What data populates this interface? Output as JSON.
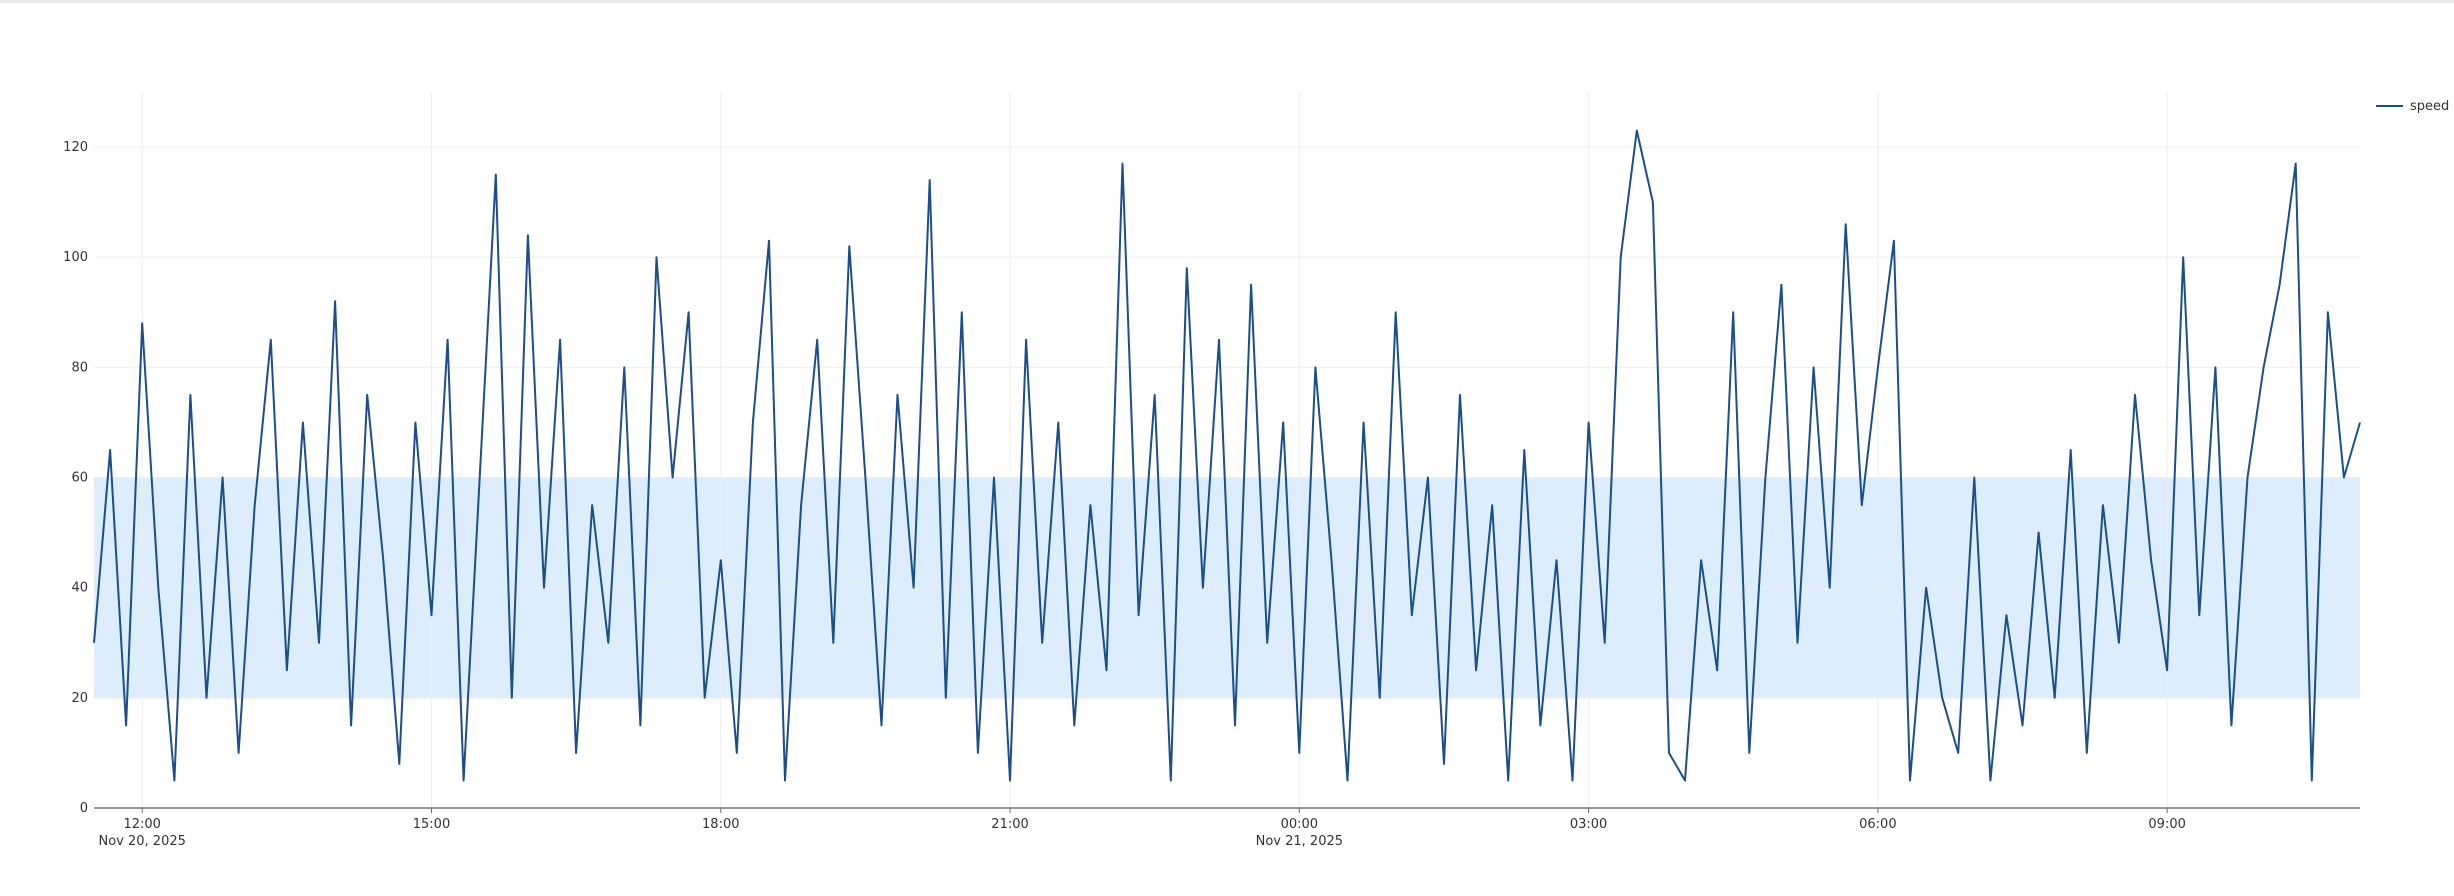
{
  "chart_data": {
    "type": "line",
    "x": [
      "2025-11-20T11:30",
      "2025-11-20T11:40",
      "2025-11-20T11:50",
      "2025-11-20T12:00",
      "2025-11-20T12:10",
      "2025-11-20T12:20",
      "2025-11-20T12:30",
      "2025-11-20T12:40",
      "2025-11-20T12:50",
      "2025-11-20T13:00",
      "2025-11-20T13:10",
      "2025-11-20T13:20",
      "2025-11-20T13:30",
      "2025-11-20T13:40",
      "2025-11-20T13:50",
      "2025-11-20T14:00",
      "2025-11-20T14:10",
      "2025-11-20T14:20",
      "2025-11-20T14:30",
      "2025-11-20T14:40",
      "2025-11-20T14:50",
      "2025-11-20T15:00",
      "2025-11-20T15:10",
      "2025-11-20T15:20",
      "2025-11-20T15:30",
      "2025-11-20T15:40",
      "2025-11-20T15:50",
      "2025-11-20T16:00",
      "2025-11-20T16:10",
      "2025-11-20T16:20",
      "2025-11-20T16:30",
      "2025-11-20T16:40",
      "2025-11-20T16:50",
      "2025-11-20T17:00",
      "2025-11-20T17:10",
      "2025-11-20T17:20",
      "2025-11-20T17:30",
      "2025-11-20T17:40",
      "2025-11-20T17:50",
      "2025-11-20T18:00",
      "2025-11-20T18:10",
      "2025-11-20T18:20",
      "2025-11-20T18:30",
      "2025-11-20T18:40",
      "2025-11-20T18:50",
      "2025-11-20T19:00",
      "2025-11-20T19:10",
      "2025-11-20T19:20",
      "2025-11-20T19:30",
      "2025-11-20T19:40",
      "2025-11-20T19:50",
      "2025-11-20T20:00",
      "2025-11-20T20:10",
      "2025-11-20T20:20",
      "2025-11-20T20:30",
      "2025-11-20T20:40",
      "2025-11-20T20:50",
      "2025-11-20T21:00",
      "2025-11-20T21:10",
      "2025-11-20T21:20",
      "2025-11-20T21:30",
      "2025-11-20T21:40",
      "2025-11-20T21:50",
      "2025-11-20T22:00",
      "2025-11-20T22:10",
      "2025-11-20T22:20",
      "2025-11-20T22:30",
      "2025-11-20T22:40",
      "2025-11-20T22:50",
      "2025-11-20T23:00",
      "2025-11-20T23:10",
      "2025-11-20T23:20",
      "2025-11-20T23:30",
      "2025-11-20T23:40",
      "2025-11-20T23:50",
      "2025-11-21T00:00",
      "2025-11-21T00:10",
      "2025-11-21T00:20",
      "2025-11-21T00:30",
      "2025-11-21T00:40",
      "2025-11-21T00:50",
      "2025-11-21T01:00",
      "2025-11-21T01:10",
      "2025-11-21T01:20",
      "2025-11-21T01:30",
      "2025-11-21T01:40",
      "2025-11-21T01:50",
      "2025-11-21T02:00",
      "2025-11-21T02:10",
      "2025-11-21T02:20",
      "2025-11-21T02:30",
      "2025-11-21T02:40",
      "2025-11-21T02:50",
      "2025-11-21T03:00",
      "2025-11-21T03:10",
      "2025-11-21T03:20",
      "2025-11-21T03:30",
      "2025-11-21T03:40",
      "2025-11-21T03:50",
      "2025-11-21T04:00",
      "2025-11-21T04:10",
      "2025-11-21T04:20",
      "2025-11-21T04:30",
      "2025-11-21T04:40",
      "2025-11-21T04:50",
      "2025-11-21T05:00",
      "2025-11-21T05:10",
      "2025-11-21T05:20",
      "2025-11-21T05:30",
      "2025-11-21T05:40",
      "2025-11-21T05:50",
      "2025-11-21T06:00",
      "2025-11-21T06:10",
      "2025-11-21T06:20",
      "2025-11-21T06:30",
      "2025-11-21T06:40",
      "2025-11-21T06:50",
      "2025-11-21T07:00",
      "2025-11-21T07:10",
      "2025-11-21T07:20",
      "2025-11-21T07:30",
      "2025-11-21T07:40",
      "2025-11-21T07:50",
      "2025-11-21T08:00",
      "2025-11-21T08:10",
      "2025-11-21T08:20",
      "2025-11-21T08:30",
      "2025-11-21T08:40",
      "2025-11-21T08:50",
      "2025-11-21T09:00",
      "2025-11-21T09:10",
      "2025-11-21T09:20",
      "2025-11-21T09:30",
      "2025-11-21T09:40",
      "2025-11-21T09:50",
      "2025-11-21T10:00",
      "2025-11-21T10:10",
      "2025-11-21T10:20",
      "2025-11-21T10:30",
      "2025-11-21T10:40",
      "2025-11-21T10:50",
      "2025-11-21T11:00"
    ],
    "series": [
      {
        "name": "speed",
        "color": "#1b4f8a",
        "values": [
          30,
          65,
          15,
          88,
          40,
          5,
          75,
          20,
          60,
          10,
          55,
          85,
          25,
          70,
          30,
          92,
          15,
          75,
          45,
          8,
          70,
          35,
          85,
          5,
          60,
          115,
          20,
          104,
          40,
          85,
          10,
          55,
          30,
          80,
          15,
          100,
          60,
          90,
          20,
          45,
          10,
          70,
          103,
          5,
          55,
          85,
          30,
          102,
          60,
          15,
          75,
          40,
          114,
          20,
          90,
          10,
          60,
          5,
          85,
          30,
          70,
          15,
          55,
          25,
          117,
          35,
          75,
          5,
          98,
          40,
          85,
          15,
          95,
          30,
          70,
          10,
          80,
          45,
          5,
          70,
          20,
          90,
          35,
          60,
          8,
          75,
          25,
          55,
          5,
          65,
          15,
          45,
          5,
          70,
          30,
          100,
          123,
          110,
          10,
          5,
          45,
          25,
          90,
          10,
          60,
          95,
          30,
          80,
          40,
          106,
          55,
          80,
          103,
          5,
          40,
          20,
          10,
          60,
          5,
          35,
          15,
          50,
          20,
          65,
          10,
          55,
          30,
          75,
          45,
          25,
          100,
          35,
          80,
          15,
          60,
          80,
          95,
          117,
          5,
          90,
          60,
          70
        ]
      }
    ],
    "xlim": [
      "2025-11-20T11:30",
      "2025-11-21T11:00"
    ],
    "xticks": [
      {
        "value": "2025-11-20T12:00",
        "label": "12:00",
        "date_label": "Nov 20, 2025"
      },
      {
        "value": "2025-11-20T15:00",
        "label": "15:00"
      },
      {
        "value": "2025-11-20T18:00",
        "label": "18:00"
      },
      {
        "value": "2025-11-20T21:00",
        "label": "21:00"
      },
      {
        "value": "2025-11-21T00:00",
        "label": "00:00",
        "date_label": "Nov 21, 2025"
      },
      {
        "value": "2025-11-21T03:00",
        "label": "03:00"
      },
      {
        "value": "2025-11-21T06:00",
        "label": "06:00"
      },
      {
        "value": "2025-11-21T09:00",
        "label": "09:00"
      }
    ],
    "ylim": [
      0,
      130
    ],
    "yticks": [
      0,
      20,
      40,
      60,
      80,
      100,
      120
    ],
    "band": {
      "from": 20,
      "to": 60,
      "color": "#deedfb"
    },
    "grid": true,
    "legend": "top-right"
  }
}
